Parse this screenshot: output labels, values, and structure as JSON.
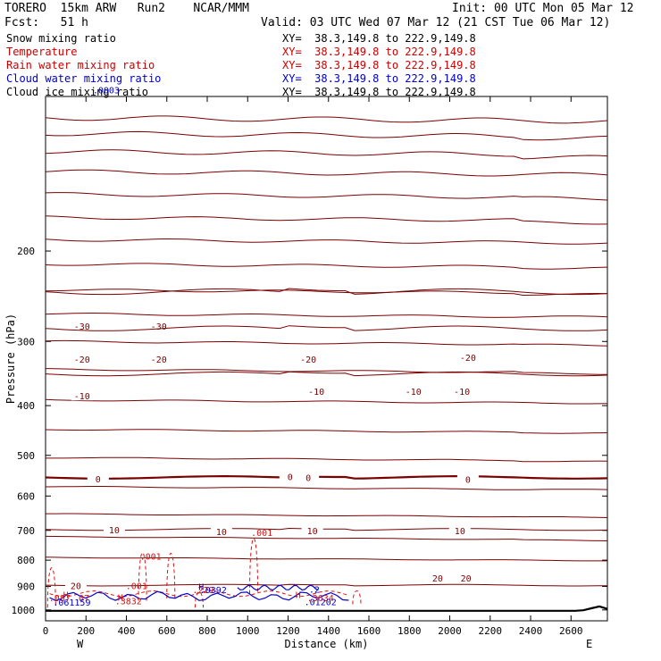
{
  "header": {
    "line1_left": "TORERO  15km ARW   Run2    NCAR/MMM",
    "line1_right": "Init: 00 UTC Mon 05 Mar 12",
    "line2_left": "Fcst:   51 h",
    "line2_right": "Valid: 03 UTC Wed 07 Mar 12 (21 CST Tue 06 Mar 12)"
  },
  "legend": [
    {
      "label": "Snow mixing ratio",
      "xy": "XY=  38.3,149.8 to 222.9,149.8",
      "color": "#000000"
    },
    {
      "label": "Temperature",
      "xy": "XY=  38.3,149.8 to 222.9,149.8",
      "color": "#cc0000"
    },
    {
      "label": "Rain water mixing ratio",
      "xy": "XY=  38.3,149.8 to 222.9,149.8",
      "color": "#cc0000"
    },
    {
      "label": "Cloud water mixing ratio",
      "xy": "XY=  38.3,149.8 to 222.9,149.8",
      "color": "#0000cc"
    },
    {
      "label": "Cloud ice mixing ratio",
      "xy": "XY=  38.3,149.8 to 222.9,149.8",
      "color": "#000000"
    }
  ],
  "chart_data": {
    "type": "contour-cross-section",
    "xlabel": "Distance (km)",
    "ylabel": "Pressure (hPa)",
    "x_ticks": [
      "0",
      "200",
      "400",
      "600",
      "800",
      "1000",
      "1200",
      "1400",
      "1600",
      "1800",
      "2000",
      "2200",
      "2400",
      "2600"
    ],
    "y_ticks": [
      "200",
      "300",
      "400",
      "500",
      "600",
      "700",
      "800",
      "900",
      "1000"
    ],
    "xlim": [
      0,
      2780
    ],
    "ylim": [
      1050,
      100
    ],
    "x_left_label": "W",
    "x_right_label": "E",
    "colors": {
      "temperature": "#7a0000",
      "rain": "#dd1111",
      "cloud": "#0000cc",
      "terrain": "#000000"
    },
    "temperature_levels": [
      {
        "label": "-30",
        "positions": [
          [
            180,
            280
          ],
          [
            560,
            280
          ]
        ],
        "p_left": 240
      },
      {
        "label": "-20",
        "positions": [
          [
            180,
            325
          ],
          [
            560,
            325
          ],
          [
            1300,
            325
          ],
          [
            2090,
            322
          ]
        ],
        "p_left": 283
      },
      {
        "label": "-10",
        "positions": [
          [
            180,
            383
          ],
          [
            1340,
            375
          ],
          [
            1820,
            375
          ],
          [
            2060,
            375
          ]
        ],
        "p_left": 347
      },
      {
        "label": "0",
        "positions": [
          [
            260,
            555
          ],
          [
            1210,
            550
          ],
          [
            1300,
            552
          ],
          [
            2090,
            557
          ]
        ],
        "p_left": 552
      },
      {
        "label": "10",
        "positions": [
          [
            340,
            698
          ],
          [
            870,
            703
          ],
          [
            1320,
            700
          ],
          [
            2050,
            700
          ]
        ],
        "p_left": 697
      },
      {
        "label": "20",
        "positions": [
          [
            150,
            897
          ],
          [
            1940,
            867
          ],
          [
            2080,
            867
          ]
        ],
        "p_left": 895
      }
    ],
    "rain_labels": [
      {
        "label": ".001",
        "x": 520,
        "p": 785
      },
      {
        "label": ".001",
        "x": 450,
        "p": 897
      },
      {
        "label": ".001",
        "x": 1070,
        "p": 706
      },
      {
        "label": ".087",
        "x": 70,
        "p": 947
      },
      {
        "label": "07",
        "x": 190,
        "p": 947
      },
      {
        "label": ".3832",
        "x": 410,
        "p": 960
      },
      {
        "label": ".3634",
        "x": 1360,
        "p": 946
      },
      {
        "label": ".229",
        "x": 780,
        "p": 912
      },
      {
        "label": "H",
        "x": 100,
        "p": 933
      },
      {
        "label": "H",
        "x": 370,
        "p": 945
      },
      {
        "label": "H",
        "x": 1250,
        "p": 933
      }
    ],
    "cloud_labels": [
      {
        "label": ".061159",
        "x": 130,
        "p": 966
      },
      {
        "label": ".01202",
        "x": 1360,
        "p": 963
      },
      {
        "label": "H",
        "x": 770,
        "p": 900
      },
      {
        "label": ".0392",
        "x": 830,
        "p": 912
      },
      {
        "label": ".2",
        "x": 1330,
        "p": 910
      },
      {
        "label": ".0003",
        "x": 300,
        "p": 97
      }
    ]
  }
}
